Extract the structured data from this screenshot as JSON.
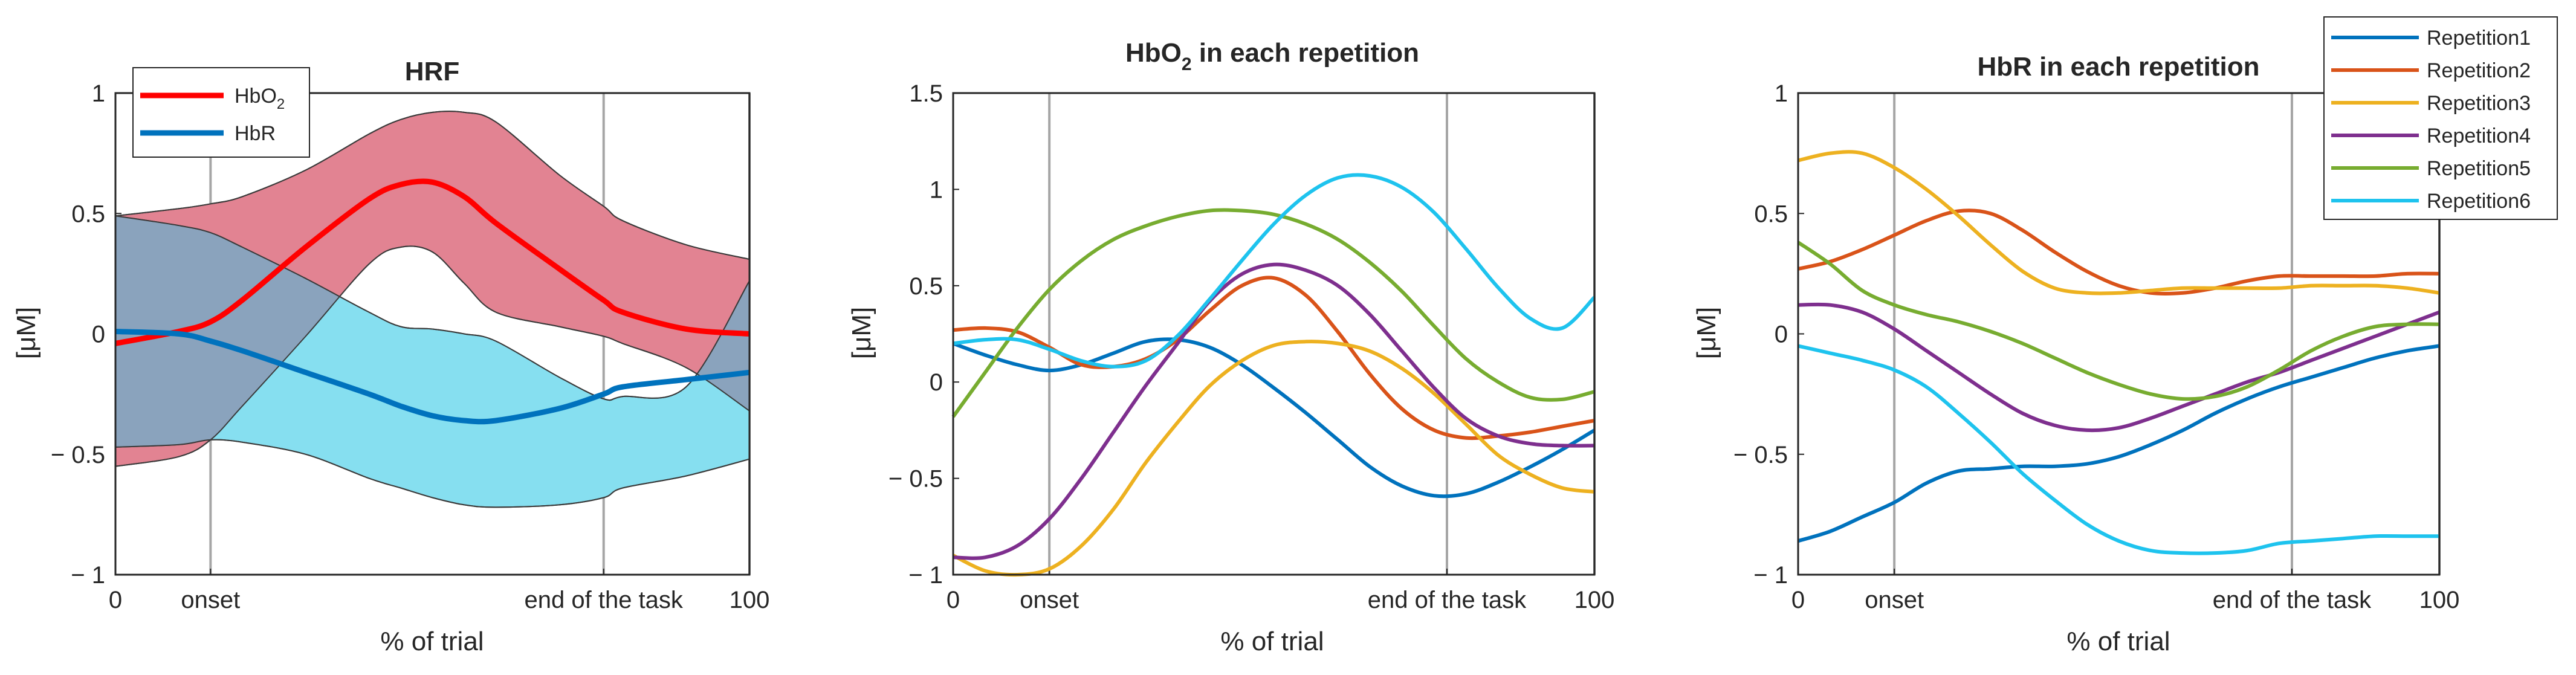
{
  "colors": {
    "hbo2": "#ff0000",
    "hbr": "#0072bd",
    "hbo2_band": "#e28392",
    "hbr_band": "#86dff0",
    "overlap": "#8aa3bd",
    "vline": "#a6a6a6",
    "rep1": "#0072bd",
    "rep2": "#d95319",
    "rep3": "#edb120",
    "rep4": "#7e2f8e",
    "rep5": "#77ac30",
    "rep6": "#1ec3ee"
  },
  "chart_data": [
    {
      "type": "area",
      "title": "HRF",
      "xlabel": "% of trial",
      "ylabel": "[μM]",
      "xlim": [
        0,
        100
      ],
      "ylim": [
        -1,
        1
      ],
      "x_ticks": [
        0,
        15,
        77,
        100
      ],
      "x_tick_labels": [
        "0",
        "onset",
        "end of the task",
        "100"
      ],
      "y_ticks": [
        -1,
        -0.5,
        0,
        0.5,
        1
      ],
      "y_tick_labels": [
        "− 1",
        "− 0.5",
        "0",
        "0.5",
        "1"
      ],
      "vlines": [
        15,
        77,
        100
      ],
      "legend_location": "top-left",
      "x": [
        0,
        10,
        15,
        20,
        30,
        40,
        45,
        50,
        55,
        60,
        70,
        77,
        80,
        90,
        100
      ],
      "series": [
        {
          "name_main": "HbO",
          "name_sub": "2",
          "mean": [
            -0.04,
            0.01,
            0.05,
            0.14,
            0.36,
            0.56,
            0.62,
            0.63,
            0.57,
            0.46,
            0.27,
            0.14,
            0.09,
            0.02,
            0.0
          ],
          "upper": [
            0.49,
            0.52,
            0.54,
            0.57,
            0.68,
            0.83,
            0.89,
            0.92,
            0.92,
            0.88,
            0.66,
            0.53,
            0.47,
            0.37,
            0.31
          ],
          "lower": [
            -0.55,
            -0.51,
            -0.44,
            -0.3,
            -0.01,
            0.29,
            0.36,
            0.34,
            0.21,
            0.09,
            0.03,
            -0.01,
            -0.04,
            -0.14,
            -0.32
          ]
        },
        {
          "name_main": "HbR",
          "name_sub": "",
          "mean": [
            0.01,
            0.0,
            -0.03,
            -0.07,
            -0.16,
            -0.25,
            -0.3,
            -0.34,
            -0.36,
            -0.36,
            -0.31,
            -0.25,
            -0.22,
            -0.19,
            -0.16
          ],
          "upper": [
            0.49,
            0.45,
            0.42,
            0.36,
            0.23,
            0.09,
            0.03,
            0.02,
            0.0,
            -0.03,
            -0.18,
            -0.27,
            -0.26,
            -0.22,
            0.22
          ],
          "lower": [
            -0.47,
            -0.46,
            -0.44,
            -0.45,
            -0.5,
            -0.6,
            -0.64,
            -0.68,
            -0.71,
            -0.72,
            -0.71,
            -0.68,
            -0.64,
            -0.59,
            -0.52
          ]
        }
      ]
    },
    {
      "type": "line",
      "title_main": "HbO",
      "title_sub": "2",
      "title_rest": " in each repetition",
      "xlabel": "% of trial",
      "ylabel": "[μM]",
      "xlim": [
        0,
        100
      ],
      "ylim": [
        -1,
        1.5
      ],
      "x_ticks": [
        0,
        15,
        77,
        100
      ],
      "x_tick_labels": [
        "0",
        "onset",
        "end of the task",
        "100"
      ],
      "y_ticks": [
        -1,
        -0.5,
        0,
        0.5,
        1,
        1.5
      ],
      "y_tick_labels": [
        "− 1",
        "− 0.5",
        "0",
        "0.5",
        "1",
        "1.5"
      ],
      "vlines": [
        15,
        77,
        100
      ],
      "x": [
        0,
        5,
        10,
        15,
        20,
        25,
        30,
        35,
        40,
        45,
        50,
        55,
        60,
        65,
        70,
        75,
        80,
        85,
        90,
        95,
        100
      ],
      "series": [
        {
          "values": [
            0.2,
            0.14,
            0.09,
            0.06,
            0.09,
            0.15,
            0.21,
            0.22,
            0.18,
            0.09,
            -0.03,
            -0.16,
            -0.3,
            -0.44,
            -0.54,
            -0.59,
            -0.58,
            -0.52,
            -0.44,
            -0.35,
            -0.25
          ]
        },
        {
          "values": [
            0.27,
            0.28,
            0.26,
            0.18,
            0.09,
            0.08,
            0.12,
            0.22,
            0.37,
            0.5,
            0.54,
            0.45,
            0.26,
            0.04,
            -0.14,
            -0.25,
            -0.29,
            -0.28,
            -0.26,
            -0.23,
            -0.2
          ]
        },
        {
          "values": [
            -0.9,
            -0.98,
            -1.0,
            -0.97,
            -0.85,
            -0.66,
            -0.42,
            -0.21,
            -0.02,
            0.11,
            0.19,
            0.21,
            0.2,
            0.16,
            0.07,
            -0.06,
            -0.22,
            -0.38,
            -0.48,
            -0.55,
            -0.57
          ]
        },
        {
          "values": [
            -0.91,
            -0.91,
            -0.85,
            -0.71,
            -0.5,
            -0.26,
            -0.02,
            0.2,
            0.42,
            0.56,
            0.61,
            0.58,
            0.5,
            0.35,
            0.16,
            -0.03,
            -0.19,
            -0.28,
            -0.32,
            -0.33,
            -0.33
          ]
        },
        {
          "values": [
            -0.18,
            0.05,
            0.28,
            0.48,
            0.63,
            0.74,
            0.81,
            0.86,
            0.89,
            0.89,
            0.87,
            0.82,
            0.74,
            0.62,
            0.47,
            0.29,
            0.12,
            0.0,
            -0.08,
            -0.09,
            -0.05
          ]
        },
        {
          "values": [
            0.2,
            0.22,
            0.22,
            0.17,
            0.11,
            0.08,
            0.11,
            0.24,
            0.43,
            0.63,
            0.82,
            0.97,
            1.06,
            1.07,
            1.01,
            0.88,
            0.69,
            0.49,
            0.33,
            0.28,
            0.44
          ]
        }
      ]
    },
    {
      "type": "line",
      "title": "HbR in each repetition",
      "xlabel": "% of trial",
      "ylabel": "[μM]",
      "xlim": [
        0,
        100
      ],
      "ylim": [
        -1,
        1
      ],
      "x_ticks": [
        0,
        15,
        77,
        100
      ],
      "x_tick_labels": [
        "0",
        "onset",
        "end of the task",
        "100"
      ],
      "y_ticks": [
        -1,
        -0.5,
        0,
        0.5,
        1
      ],
      "y_tick_labels": [
        "− 1",
        "− 0.5",
        "0",
        "0.5",
        "1"
      ],
      "vlines": [
        15,
        77,
        100
      ],
      "legend_location": "top-right",
      "x": [
        0,
        5,
        10,
        15,
        20,
        25,
        30,
        35,
        40,
        45,
        50,
        55,
        60,
        65,
        70,
        75,
        80,
        85,
        90,
        95,
        100
      ],
      "series": [
        {
          "name": "Repetition1",
          "values": [
            -0.86,
            -0.82,
            -0.76,
            -0.7,
            -0.62,
            -0.57,
            -0.56,
            -0.55,
            -0.55,
            -0.54,
            -0.51,
            -0.46,
            -0.4,
            -0.33,
            -0.27,
            -0.22,
            -0.18,
            -0.14,
            -0.1,
            -0.07,
            -0.05
          ]
        },
        {
          "name": "Repetition2",
          "values": [
            0.27,
            0.3,
            0.35,
            0.41,
            0.47,
            0.51,
            0.5,
            0.43,
            0.34,
            0.26,
            0.2,
            0.17,
            0.17,
            0.19,
            0.22,
            0.24,
            0.24,
            0.24,
            0.24,
            0.25,
            0.25
          ]
        },
        {
          "name": "Repetition3",
          "values": [
            0.72,
            0.75,
            0.75,
            0.69,
            0.6,
            0.49,
            0.37,
            0.26,
            0.19,
            0.17,
            0.17,
            0.18,
            0.19,
            0.19,
            0.19,
            0.19,
            0.2,
            0.2,
            0.2,
            0.19,
            0.17
          ]
        },
        {
          "name": "Repetition4",
          "values": [
            0.12,
            0.12,
            0.09,
            0.02,
            -0.07,
            -0.16,
            -0.25,
            -0.33,
            -0.38,
            -0.4,
            -0.39,
            -0.35,
            -0.3,
            -0.25,
            -0.2,
            -0.16,
            -0.11,
            -0.06,
            -0.01,
            0.04,
            0.09
          ]
        },
        {
          "name": "Repetition5",
          "values": [
            0.38,
            0.29,
            0.18,
            0.12,
            0.08,
            0.05,
            0.01,
            -0.04,
            -0.1,
            -0.16,
            -0.21,
            -0.25,
            -0.27,
            -0.26,
            -0.22,
            -0.15,
            -0.07,
            -0.01,
            0.03,
            0.04,
            0.04
          ]
        },
        {
          "name": "Repetition6",
          "values": [
            -0.05,
            -0.08,
            -0.11,
            -0.15,
            -0.22,
            -0.33,
            -0.45,
            -0.58,
            -0.69,
            -0.79,
            -0.86,
            -0.9,
            -0.91,
            -0.91,
            -0.9,
            -0.87,
            -0.86,
            -0.85,
            -0.84,
            -0.84,
            -0.84
          ]
        }
      ]
    }
  ]
}
